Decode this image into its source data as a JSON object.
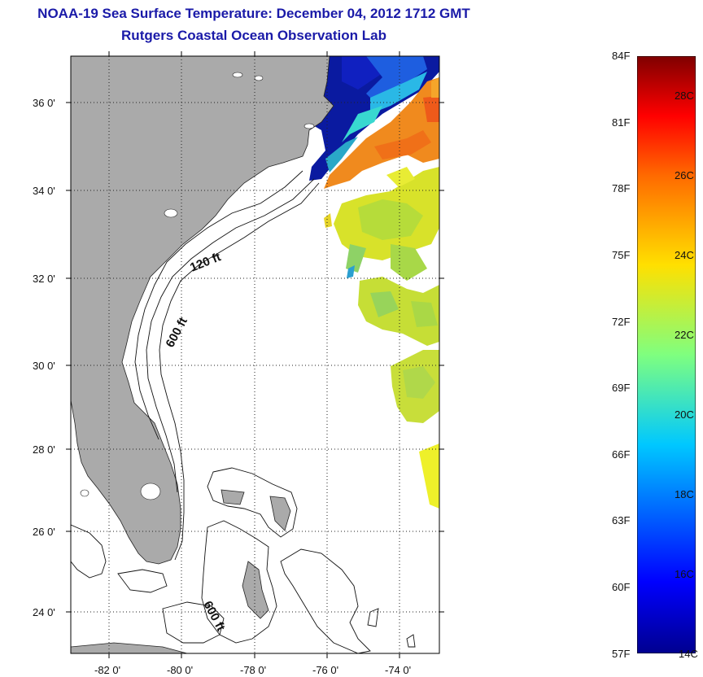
{
  "header": {
    "title_line1": "NOAA-19 Sea Surface Temperature:  December 04, 2012 1712 GMT",
    "title_line2": "Rutgers Coastal Ocean Observation Lab"
  },
  "map": {
    "lat_labels": [
      "36 0'",
      "34 0'",
      "32 0'",
      "30 0'",
      "28 0'",
      "26 0'",
      "24 0'"
    ],
    "lon_labels": [
      "-82 0'",
      "-80 0'",
      "-78 0'",
      "-76 0'",
      "-74 0'"
    ],
    "contour_labels": [
      "120 ft",
      "600 ft",
      "600 ft"
    ],
    "colors": {
      "land": "#aaaaaa",
      "ocean_background": "#ffffff"
    }
  },
  "colorbar": {
    "fahrenheit_labels": [
      "84F",
      "81F",
      "78F",
      "75F",
      "72F",
      "69F",
      "66F",
      "63F",
      "60F",
      "57F"
    ],
    "celsius_labels": [
      "28C",
      "26C",
      "24C",
      "22C",
      "20C",
      "18C",
      "16C",
      "14C"
    ],
    "range_f": [
      57,
      84
    ],
    "range_c": [
      14,
      29
    ]
  }
}
